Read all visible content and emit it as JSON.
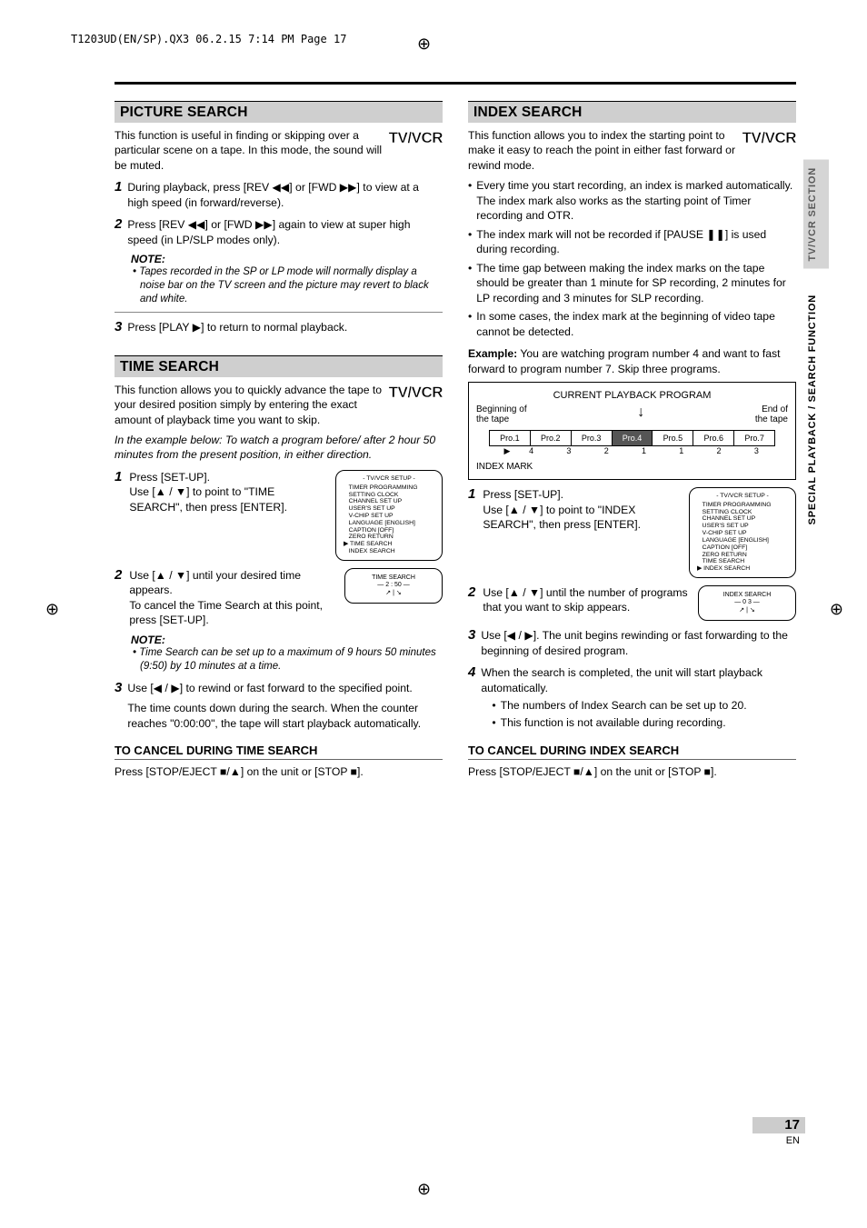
{
  "print_header": "T1203UD(EN/SP).QX3  06.2.15  7:14 PM  Page 17",
  "tvvcr_logo": "TV/VCR",
  "page_number": "17",
  "page_lang": "EN",
  "side_tabs": {
    "top": "TV/VCR SECTION",
    "bottom": "SPECIAL PLAYBACK / SEARCH FUNCTION"
  },
  "colors": {
    "section_bg": "#cfcfcf",
    "side_grey_bg": "#d5d5d5",
    "side_grey_text": "#5a5a5a",
    "diagram_sel_bg": "#555555"
  },
  "left": {
    "picture_head": "PICTURE SEARCH",
    "picture_intro": "This function is useful in finding or skipping over a particular scene on a tape. In this mode, the sound will be muted.",
    "picture_step1": "During playback, press [REV ◀◀] or [FWD ▶▶] to view at a high speed (in forward/reverse).",
    "picture_step2": "Press [REV ◀◀] or [FWD ▶▶] again to view at super high speed (in LP/SLP modes only).",
    "note_head": "NOTE:",
    "picture_note": "• Tapes recorded in the SP or LP mode will normally display a noise bar on the TV screen and the picture may revert to black and white.",
    "picture_step3": "Press [PLAY ▶] to return to normal playback.",
    "time_head": "TIME SEARCH",
    "time_intro": "This function allows you to quickly advance the tape to your desired position simply by entering the exact amount of playback time you want to skip.",
    "time_example": "In the example below: To watch a program before/ after 2 hour 50 minutes from the present position, in either direction.",
    "time_step1": "Press [SET-UP].\nUse [▲ / ▼] to point to \"TIME SEARCH\", then press [ENTER].",
    "time_step2": "Use [▲ / ▼] until your desired time appears.\nTo cancel the Time Search at this point, press [SET-UP].",
    "time_note": "• Time Search can be set up to a maximum of 9 hours 50 minutes (9:50) by 10 minutes at a time.",
    "time_step3": "Use [◀ / ▶] to rewind or fast forward to the specified point.",
    "time_step3b": "The time counts down during the search. When the counter reaches \"0:00:00\", the tape will start playback automatically.",
    "time_cancel_head": "TO CANCEL DURING TIME SEARCH",
    "time_cancel": "Press [STOP/EJECT ■/▲] on the unit or [STOP ■].",
    "osd1": {
      "title": "- TV/VCR SETUP -",
      "items": [
        "TIMER PROGRAMMING",
        "SETTING CLOCK",
        "CHANNEL SET UP",
        "USER'S SET UP",
        "V-CHIP SET UP",
        "LANGUAGE   [ENGLISH]",
        "CAPTION   [OFF]",
        "ZERO RETURN",
        "TIME SEARCH",
        "INDEX SEARCH"
      ],
      "pointer_index": 8
    },
    "osd2": {
      "title": "TIME SEARCH",
      "value": "— 2 : 50 —",
      "arrows": "↗ | ↘"
    }
  },
  "right": {
    "index_head": "INDEX SEARCH",
    "index_intro": "This function allows you to index the starting point to make it easy to reach the point in either fast forward or rewind mode.",
    "bullets": [
      "Every time you start recording, an index is marked automatically. The index mark also works as the starting point of Timer recording and OTR.",
      "The index mark will not be recorded if [PAUSE ❚❚] is used during recording.",
      "The time gap between making the index marks on the tape should be greater than 1 minute for SP recording, 2 minutes for LP recording and 3 minutes for SLP recording.",
      "In some cases, the index mark at the beginning of video tape cannot be detected."
    ],
    "example_label": "Example:",
    "example_text": "You are watching program number 4 and want to fast forward to program number 7. Skip three programs.",
    "diagram": {
      "title": "CURRENT PLAYBACK PROGRAM",
      "left_label": "Beginning of\nthe tape",
      "right_label": "End of\nthe tape",
      "programs": [
        "Pro.1",
        "Pro.2",
        "Pro.3",
        "Pro.4",
        "Pro.5",
        "Pro.6",
        "Pro.7"
      ],
      "current_index": 3,
      "idx_nums": [
        "4",
        "3",
        "2",
        "1",
        "1",
        "2",
        "3"
      ],
      "index_mark_label": "INDEX MARK"
    },
    "step1": "Press [SET-UP].\nUse [▲ / ▼] to point to \"INDEX SEARCH\", then press [ENTER].",
    "step2": "Use [▲ / ▼] until the number of programs that you want to skip appears.",
    "step3": "Use [◀ / ▶]. The unit begins rewinding or fast forwarding to the beginning of desired program.",
    "step4": "When the search is completed, the unit will start playback automatically.",
    "step4_sub": [
      "The numbers of Index Search can be set up to 20.",
      "This function is not available during recording."
    ],
    "cancel_head": "TO CANCEL DURING INDEX SEARCH",
    "cancel": "Press [STOP/EJECT ■/▲] on the unit or [STOP ■].",
    "osd1": {
      "title": "- TV/VCR SETUP -",
      "items": [
        "TIMER PROGRAMMING",
        "SETTING CLOCK",
        "CHANNEL SET UP",
        "USER'S SET UP",
        "V-CHIP SET UP",
        "LANGUAGE   [ENGLISH]",
        "CAPTION   [OFF]",
        "ZERO RETURN",
        "TIME SEARCH",
        "INDEX SEARCH"
      ],
      "pointer_index": 9
    },
    "osd2": {
      "title": "INDEX SEARCH",
      "value": "— 0 3 —",
      "arrows": "↗ | ↘"
    }
  }
}
